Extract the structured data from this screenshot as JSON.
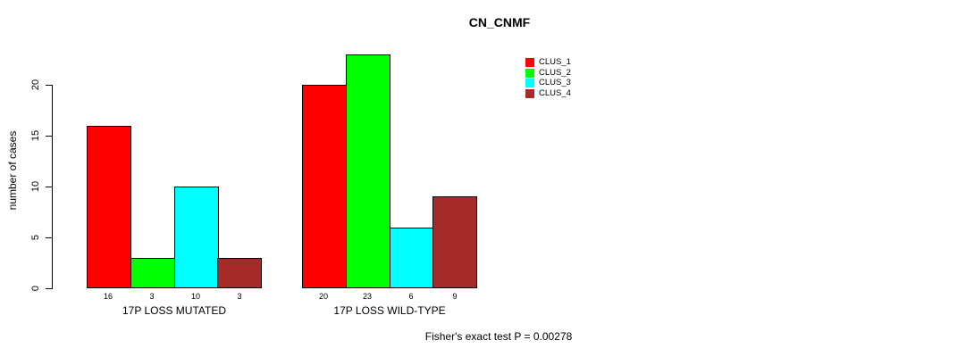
{
  "chart_data": {
    "type": "bar",
    "title": "CN_CNMF",
    "xlabel": "",
    "ylabel": "number of cases",
    "ylim": [
      0,
      23
    ],
    "yticks": [
      0,
      5,
      10,
      15,
      20
    ],
    "grid": false,
    "legend_position": "top-right",
    "categories": [
      "17P LOSS MUTATED",
      "17P LOSS WILD-TYPE"
    ],
    "series": [
      {
        "name": "CLUS_1",
        "color": "#FF0000",
        "values": [
          16,
          20
        ]
      },
      {
        "name": "CLUS_2",
        "color": "#00FF00",
        "values": [
          3,
          23
        ]
      },
      {
        "name": "CLUS_3",
        "color": "#00FFFF",
        "values": [
          10,
          6
        ]
      },
      {
        "name": "CLUS_4",
        "color": "#A52A2A",
        "values": [
          3,
          9
        ]
      }
    ],
    "bar_value_labels": {
      "17P LOSS MUTATED": [
        16,
        3,
        10,
        3
      ],
      "17P LOSS WILD-TYPE": [
        20,
        23,
        6,
        9
      ]
    },
    "annotation": "Fisher's exact test P = 0.00278"
  }
}
